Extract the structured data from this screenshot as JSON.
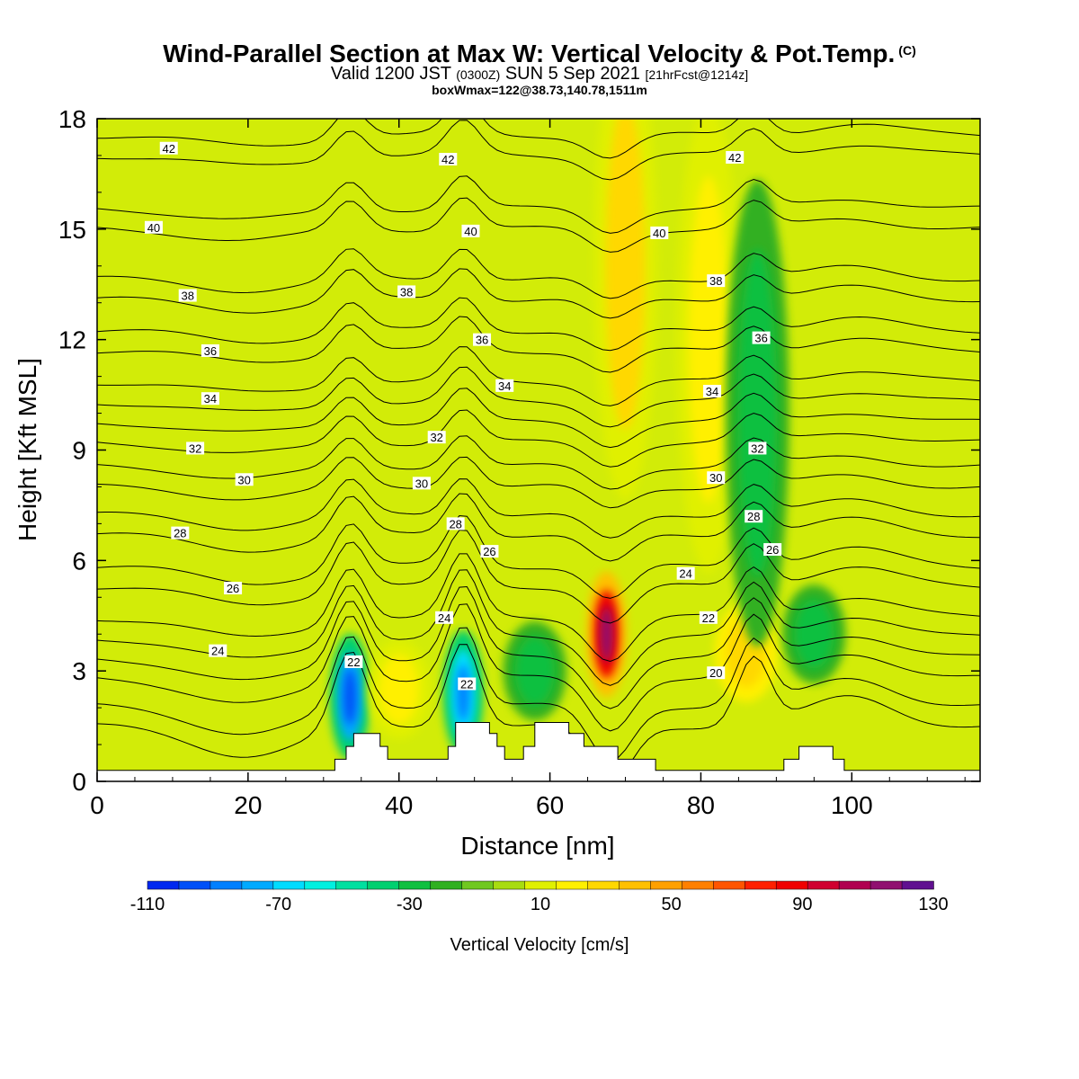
{
  "header": {
    "title": "Wind-Parallel Section at Max W: Vertical Velocity & Pot.Temp.",
    "copyright": "(C)",
    "valid_prefix": "Valid 1200 JST",
    "utc": "(0300Z)",
    "date": "SUN 5 Sep 2021",
    "forecast": "[21hrFcst@1214z]",
    "boxwmax": "boxWmax=122@38.73,140.78,1511m"
  },
  "chart_data": {
    "type": "heatmap",
    "xlabel": "Distance [nm]",
    "ylabel": "Height [Kft MSL]",
    "xlim": [
      0,
      117
    ],
    "ylim": [
      0,
      18
    ],
    "xticks": [
      0,
      20,
      40,
      60,
      80,
      100
    ],
    "yticks": [
      0,
      3,
      6,
      9,
      12,
      15,
      18
    ],
    "colorbar": {
      "label": "Vertical Velocity [cm/s]",
      "ticks": [
        -110,
        -70,
        -30,
        10,
        50,
        90,
        130
      ],
      "bounds": [
        -110,
        -100,
        -90,
        -80,
        -70,
        -60,
        -50,
        -40,
        -30,
        -20,
        -10,
        0,
        10,
        20,
        30,
        40,
        50,
        60,
        70,
        80,
        90,
        100,
        110,
        120,
        130
      ],
      "colors": [
        "#0028f0",
        "#0050f8",
        "#0080ff",
        "#00aaff",
        "#00dcff",
        "#00f0e0",
        "#00e0a0",
        "#00d070",
        "#10c040",
        "#30b020",
        "#70c820",
        "#a8dc10",
        "#e0f000",
        "#fff000",
        "#ffd800",
        "#ffc000",
        "#ffa000",
        "#ff8000",
        "#ff5500",
        "#ff2000",
        "#f00000",
        "#d00030",
        "#b00050",
        "#901070",
        "#601090"
      ]
    },
    "vertical_velocity_features": [
      {
        "x": 33.5,
        "height": 2.3,
        "w": -100
      },
      {
        "x": 48.5,
        "height": 2.4,
        "w": -85
      },
      {
        "x": 67.5,
        "height": 4.0,
        "w": 122
      },
      {
        "x": 40,
        "height": 2.5,
        "w": 30
      },
      {
        "x": 86,
        "height": 3.5,
        "w": 50
      },
      {
        "x": 81,
        "height": 12,
        "w": 35
      },
      {
        "x": 70,
        "height": 14,
        "w": 40
      },
      {
        "x": 87.5,
        "height": 10,
        "w": -30
      },
      {
        "x": 95,
        "height": 4,
        "w": -35
      },
      {
        "x": 58,
        "height": 3,
        "w": -30
      }
    ],
    "theta_contours": [
      {
        "value": 20,
        "height": 1.5
      },
      {
        "value": 22,
        "height": 2.8
      },
      {
        "value": 24,
        "height": 3.9
      },
      {
        "value": 26,
        "height": 5.3
      },
      {
        "value": 28,
        "height": 6.7
      },
      {
        "value": 30,
        "height": 8.0
      },
      {
        "value": 32,
        "height": 9.2
      },
      {
        "value": 34,
        "height": 10.3
      },
      {
        "value": 36,
        "height": 11.7
      },
      {
        "value": 38,
        "height": 13.1
      },
      {
        "value": 40,
        "height": 15.0
      },
      {
        "value": 42,
        "height": 17.0
      }
    ],
    "contour_labels": [
      {
        "text": "42",
        "x": 9.5,
        "y": 17.2
      },
      {
        "text": "42",
        "x": 46.5,
        "y": 16.9
      },
      {
        "text": "42",
        "x": 84.5,
        "y": 16.95
      },
      {
        "text": "40",
        "x": 7.5,
        "y": 15.05
      },
      {
        "text": "40",
        "x": 49.5,
        "y": 14.95
      },
      {
        "text": "40",
        "x": 74.5,
        "y": 14.9
      },
      {
        "text": "38",
        "x": 12,
        "y": 13.2
      },
      {
        "text": "38",
        "x": 41,
        "y": 13.3
      },
      {
        "text": "38",
        "x": 82,
        "y": 13.6
      },
      {
        "text": "36",
        "x": 15,
        "y": 11.7
      },
      {
        "text": "36",
        "x": 51,
        "y": 12.0
      },
      {
        "text": "36",
        "x": 88,
        "y": 12.05
      },
      {
        "text": "34",
        "x": 15,
        "y": 10.4
      },
      {
        "text": "34",
        "x": 54,
        "y": 10.75
      },
      {
        "text": "34",
        "x": 81.5,
        "y": 10.6
      },
      {
        "text": "32",
        "x": 13,
        "y": 9.05
      },
      {
        "text": "32",
        "x": 45,
        "y": 9.35
      },
      {
        "text": "32",
        "x": 87.5,
        "y": 9.05
      },
      {
        "text": "30",
        "x": 19.5,
        "y": 8.2
      },
      {
        "text": "30",
        "x": 43,
        "y": 8.1
      },
      {
        "text": "30",
        "x": 82,
        "y": 8.25
      },
      {
        "text": "28",
        "x": 11,
        "y": 6.75
      },
      {
        "text": "28",
        "x": 47.5,
        "y": 7.0
      },
      {
        "text": "28",
        "x": 87,
        "y": 7.2
      },
      {
        "text": "26",
        "x": 18,
        "y": 5.25
      },
      {
        "text": "26",
        "x": 52,
        "y": 6.25
      },
      {
        "text": "26",
        "x": 89.5,
        "y": 6.3
      },
      {
        "text": "24",
        "x": 16,
        "y": 3.55
      },
      {
        "text": "24",
        "x": 46,
        "y": 4.45
      },
      {
        "text": "24",
        "x": 78,
        "y": 5.65
      },
      {
        "text": "22",
        "x": 34,
        "y": 3.25
      },
      {
        "text": "22",
        "x": 49,
        "y": 2.65
      },
      {
        "text": "22",
        "x": 81,
        "y": 4.45
      },
      {
        "text": "20",
        "x": 82,
        "y": 2.95
      }
    ],
    "terrain": [
      [
        0,
        0.3
      ],
      [
        31.5,
        0.3
      ],
      [
        31.5,
        0.6
      ],
      [
        33,
        0.6
      ],
      [
        33,
        0.95
      ],
      [
        34,
        0.95
      ],
      [
        34,
        1.3
      ],
      [
        37.5,
        1.3
      ],
      [
        37.5,
        0.95
      ],
      [
        38.5,
        0.95
      ],
      [
        38.5,
        0.6
      ],
      [
        46.5,
        0.6
      ],
      [
        46.5,
        0.95
      ],
      [
        47.5,
        0.95
      ],
      [
        47.5,
        1.6
      ],
      [
        52,
        1.6
      ],
      [
        52,
        1.3
      ],
      [
        53,
        1.3
      ],
      [
        53,
        0.95
      ],
      [
        54,
        0.95
      ],
      [
        54,
        0.6
      ],
      [
        56.5,
        0.6
      ],
      [
        56.5,
        0.95
      ],
      [
        58,
        0.95
      ],
      [
        58,
        1.6
      ],
      [
        62.5,
        1.6
      ],
      [
        62.5,
        1.3
      ],
      [
        64.5,
        1.3
      ],
      [
        64.5,
        0.95
      ],
      [
        69,
        0.95
      ],
      [
        69,
        0.6
      ],
      [
        74,
        0.6
      ],
      [
        74,
        0.3
      ],
      [
        91,
        0.3
      ],
      [
        91,
        0.6
      ],
      [
        93,
        0.6
      ],
      [
        93,
        0.95
      ],
      [
        97.5,
        0.95
      ],
      [
        97.5,
        0.6
      ],
      [
        99,
        0.6
      ],
      [
        99,
        0.3
      ],
      [
        117,
        0.3
      ]
    ]
  }
}
